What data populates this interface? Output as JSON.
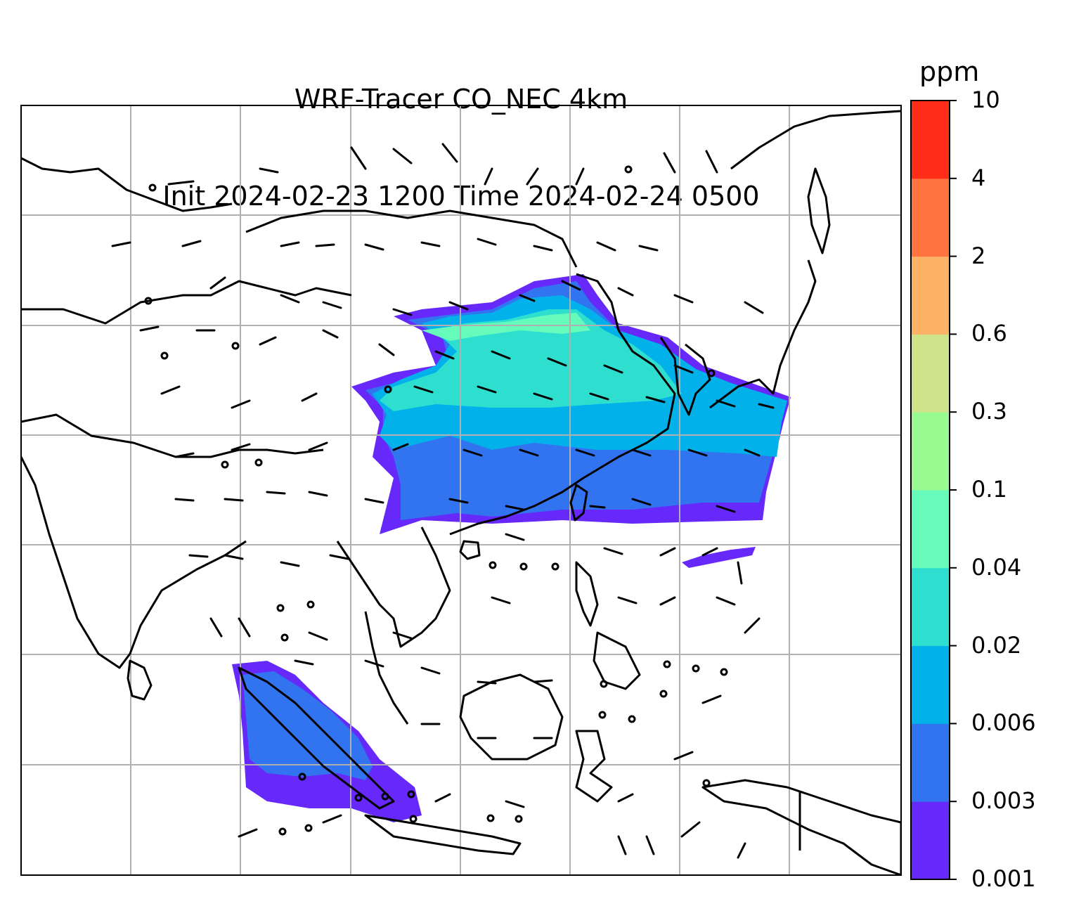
{
  "title": {
    "line1": "WRF-Tracer CO_NEC 4km",
    "line2": "Init 2024-02-23 1200 Time 2024-02-24 0500"
  },
  "colorbar": {
    "unit": "ppm",
    "levels": [
      "0.001",
      "0.003",
      "0.006",
      "0.02",
      "0.04",
      "0.1",
      "0.3",
      "0.6",
      "2",
      "4",
      "10"
    ],
    "colors": [
      "#6629fa",
      "#3273f0",
      "#03b1ea",
      "#2edfd0",
      "#66fabb",
      "#99fa92",
      "#cfe38b",
      "#fdb265",
      "#ff7340",
      "#ff2c18"
    ]
  },
  "map": {
    "graticule": "on",
    "wind_barbs": "shown",
    "coastlines": "shown"
  }
}
